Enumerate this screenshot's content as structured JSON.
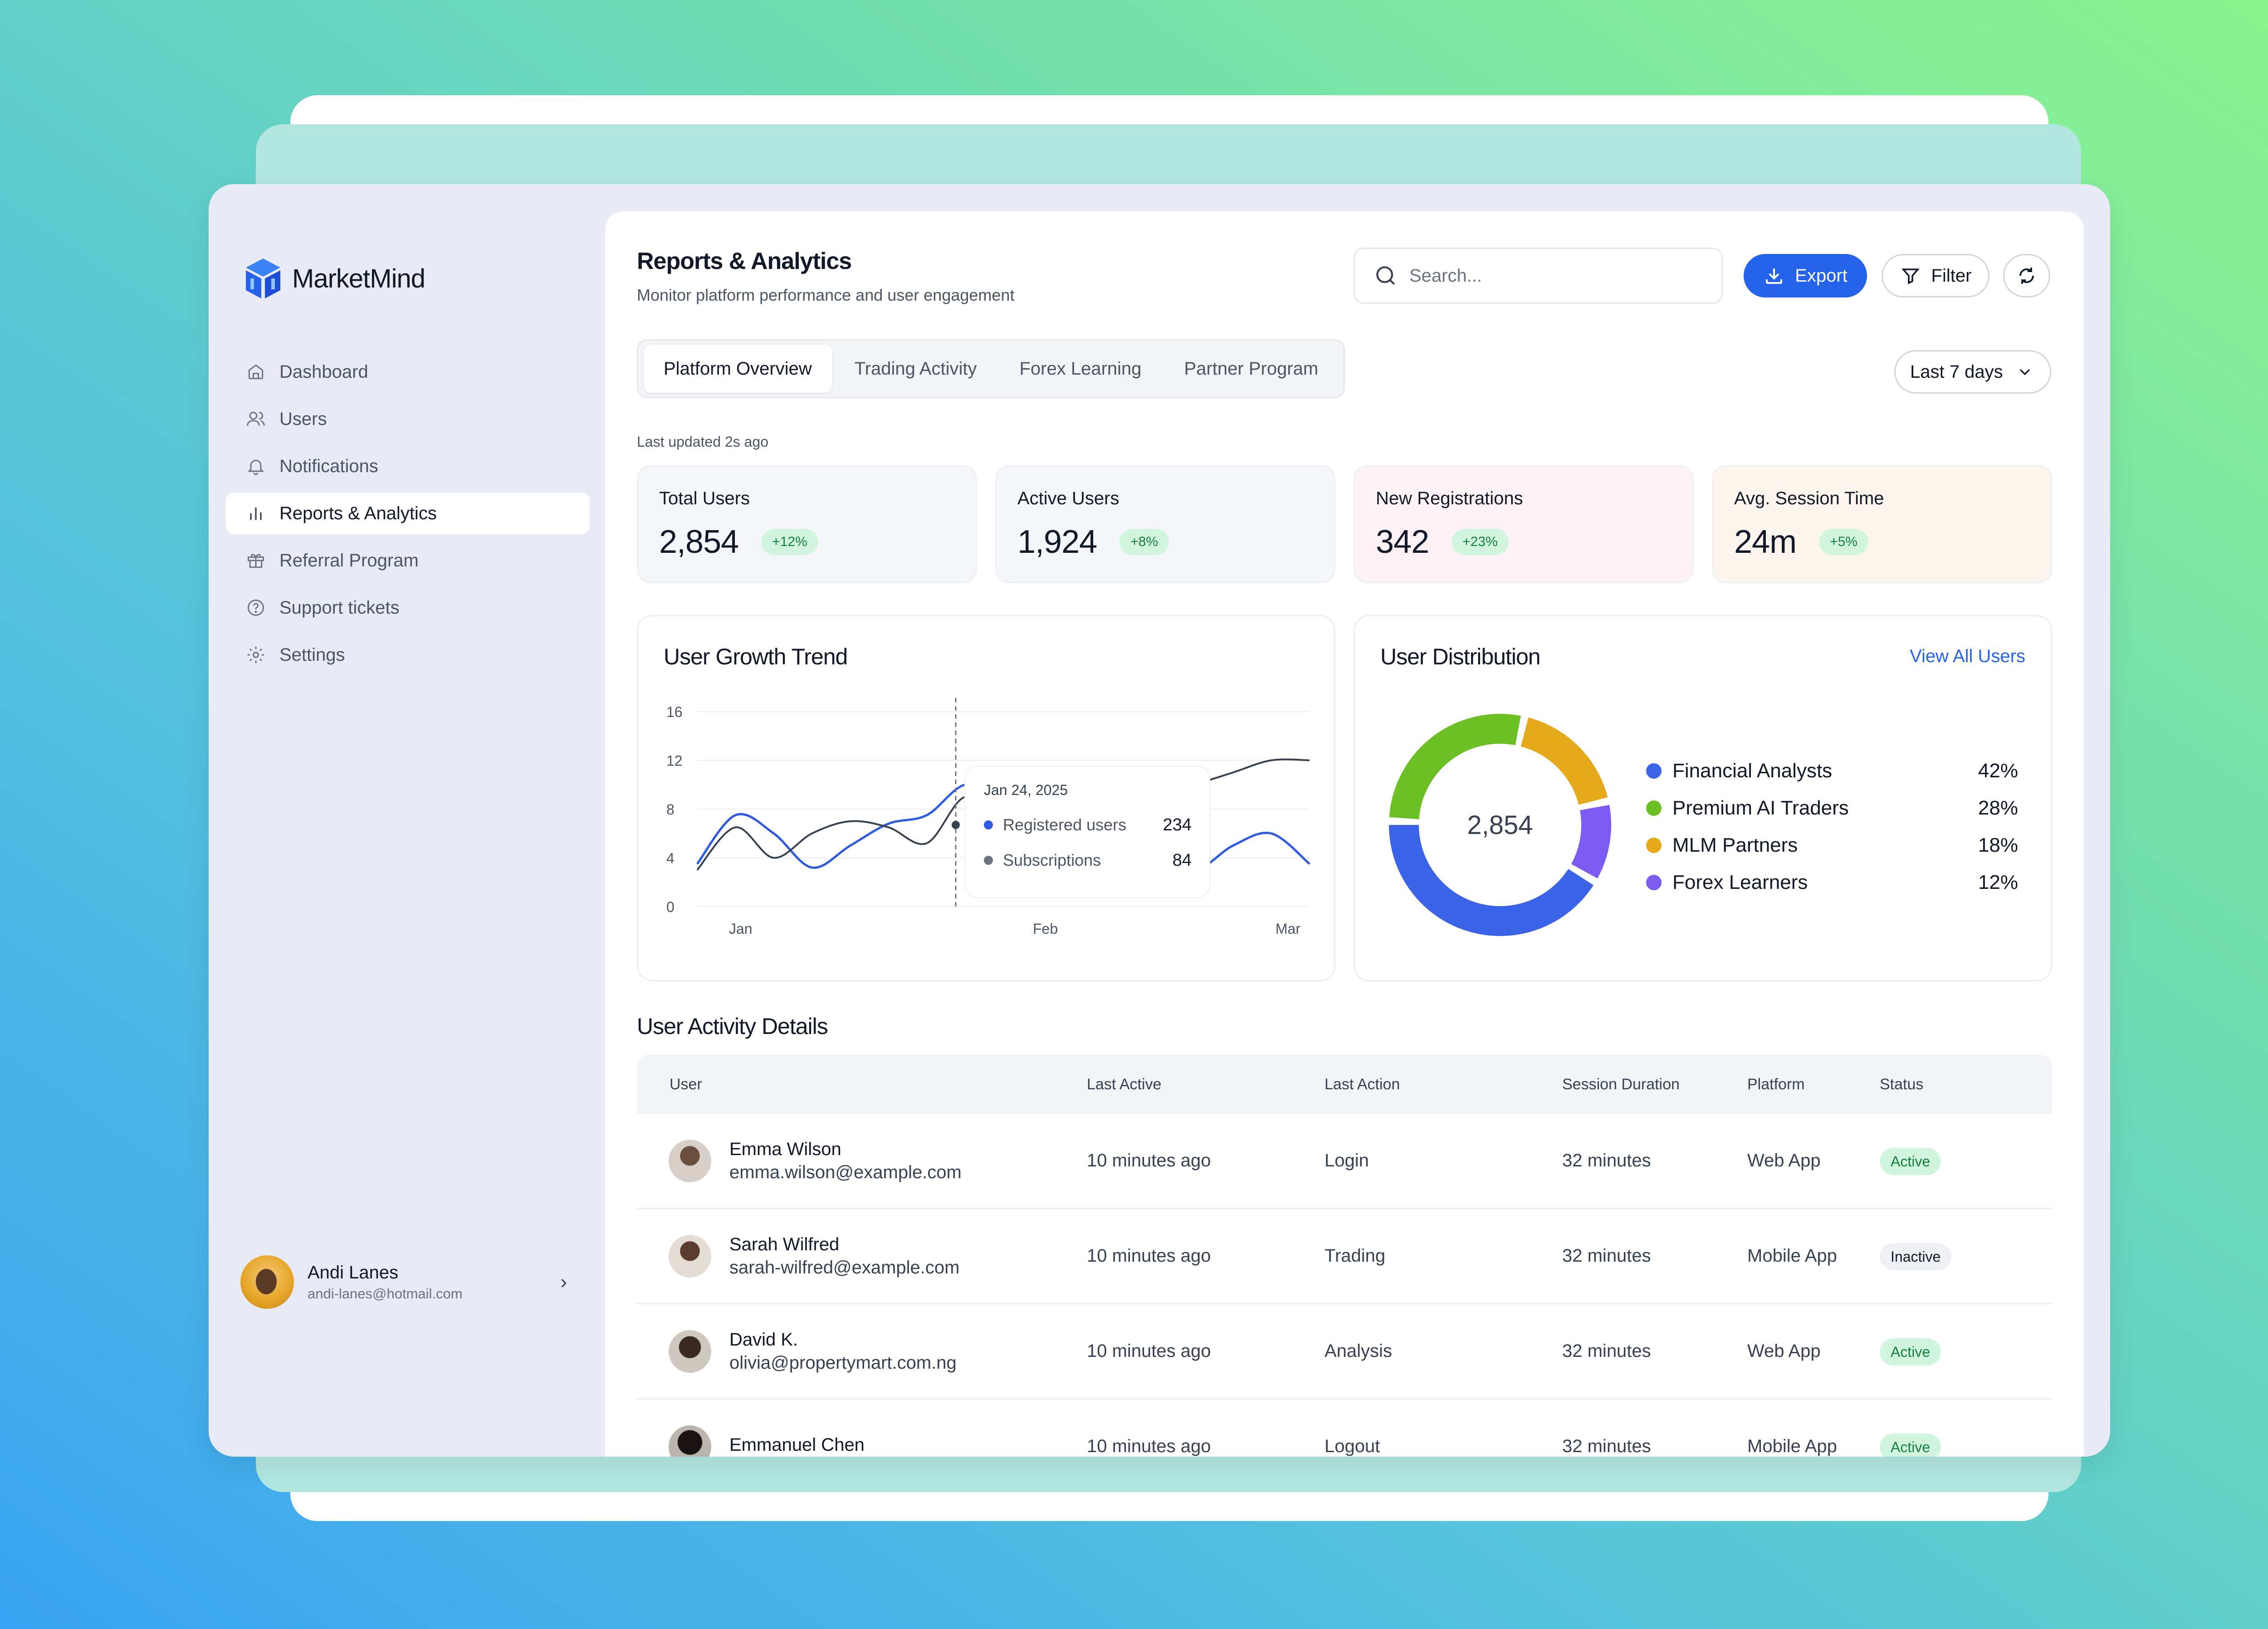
{
  "app": {
    "name": "MarketMind"
  },
  "sidebar": {
    "items": [
      {
        "label": "Dashboard",
        "icon": "home-icon"
      },
      {
        "label": "Users",
        "icon": "users-icon"
      },
      {
        "label": "Notifications",
        "icon": "bell-icon"
      },
      {
        "label": "Reports & Analytics",
        "icon": "bar-chart-icon",
        "active": true
      },
      {
        "label": "Referral Program",
        "icon": "gift-icon"
      },
      {
        "label": "Support tickets",
        "icon": "help-circle-icon"
      },
      {
        "label": "Settings",
        "icon": "gear-icon"
      }
    ],
    "user": {
      "name": "Andi Lanes",
      "email": "andi-lanes@hotmail.com"
    }
  },
  "header": {
    "title": "Reports & Analytics",
    "subtitle": "Monitor platform performance and user engagement",
    "search_placeholder": "Search...",
    "export_label": "Export",
    "filter_label": "Filter"
  },
  "tabs": [
    "Platform Overview",
    "Trading Activity",
    "Forex Learning",
    "Partner Program"
  ],
  "range_label": "Last 7 days",
  "last_updated": "Last updated 2s ago",
  "stats": [
    {
      "label": "Total Users",
      "value": "2,854",
      "change": "+12%",
      "bg": "#f5f6fa"
    },
    {
      "label": "Active Users",
      "value": "1,924",
      "change": "+8%",
      "bg": "#f5f6fa"
    },
    {
      "label": "New Registrations",
      "value": "342",
      "change": "+23%",
      "bg": "#fdf2f6"
    },
    {
      "label": "Avg. Session Time",
      "value": "24m",
      "change": "+5%",
      "bg": "#fdf6ee"
    }
  ],
  "growth": {
    "title": "User Growth Trend",
    "tooltip": {
      "date": "Jan 24, 2025",
      "rows": [
        {
          "label": "Registered users",
          "value": "234"
        },
        {
          "label": "Subscriptions",
          "value": "84"
        }
      ]
    },
    "yticks": [
      "16",
      "12",
      "8",
      "4",
      "0"
    ],
    "xticks": [
      "Jan",
      "Feb",
      "Mar"
    ]
  },
  "distribution": {
    "title": "User Distribution",
    "view_all": "View All Users",
    "center_value": "2,854",
    "segments": [
      {
        "name": "Financial Analysts",
        "pct": "42%",
        "value": 42,
        "color": "#3b63e8"
      },
      {
        "name": "Premium AI Traders",
        "pct": "28%",
        "value": 28,
        "color": "#6cc024"
      },
      {
        "name": "MLM Partners",
        "pct": "18%",
        "value": 18,
        "color": "#e5a91c"
      },
      {
        "name": "Forex Learners",
        "pct": "12%",
        "value": 12,
        "color": "#7c5cf0"
      }
    ]
  },
  "chart_data": {
    "type": "line",
    "title": "User Growth Trend",
    "xlabel": "",
    "ylabel": "",
    "ylim": [
      0,
      16
    ],
    "x_ticks": [
      "Jan",
      "Feb",
      "Mar"
    ],
    "series": [
      {
        "name": "Registered users",
        "color": "#2f5be0",
        "values": [
          3.5,
          7.5,
          6,
          3.2,
          5,
          6.8,
          7.5,
          10,
          9,
          8.4,
          10,
          6,
          4.5,
          3,
          5,
          6,
          3.5
        ]
      },
      {
        "name": "Subscriptions",
        "color": "#374151",
        "values": [
          3,
          6.5,
          4,
          6,
          7,
          6.5,
          5.2,
          9,
          7,
          10,
          6,
          8,
          9,
          10,
          11,
          12,
          12
        ]
      }
    ]
  },
  "activity": {
    "title": "User Activity Details",
    "columns": [
      "User",
      "Last Active",
      "Last Action",
      "Session Duration",
      "Platform",
      "Status"
    ],
    "rows": [
      {
        "name": "Emma Wilson",
        "email": "emma.wilson@example.com",
        "last_active": "10 minutes ago",
        "action": "Login",
        "duration": "32 minutes",
        "platform": "Web App",
        "status": "Active"
      },
      {
        "name": "Sarah Wilfred",
        "email": "sarah-wilfred@example.com",
        "last_active": "10 minutes ago",
        "action": "Trading",
        "duration": "32 minutes",
        "platform": "Mobile App",
        "status": "Inactive"
      },
      {
        "name": "David K.",
        "email": "olivia@propertymart.com.ng",
        "last_active": "10 minutes ago",
        "action": "Analysis",
        "duration": "32 minutes",
        "platform": "Web App",
        "status": "Active"
      },
      {
        "name": "Emmanuel Chen",
        "email": "",
        "last_active": "10 minutes ago",
        "action": "Logout",
        "duration": "32 minutes",
        "platform": "Mobile App",
        "status": "Active"
      }
    ]
  }
}
